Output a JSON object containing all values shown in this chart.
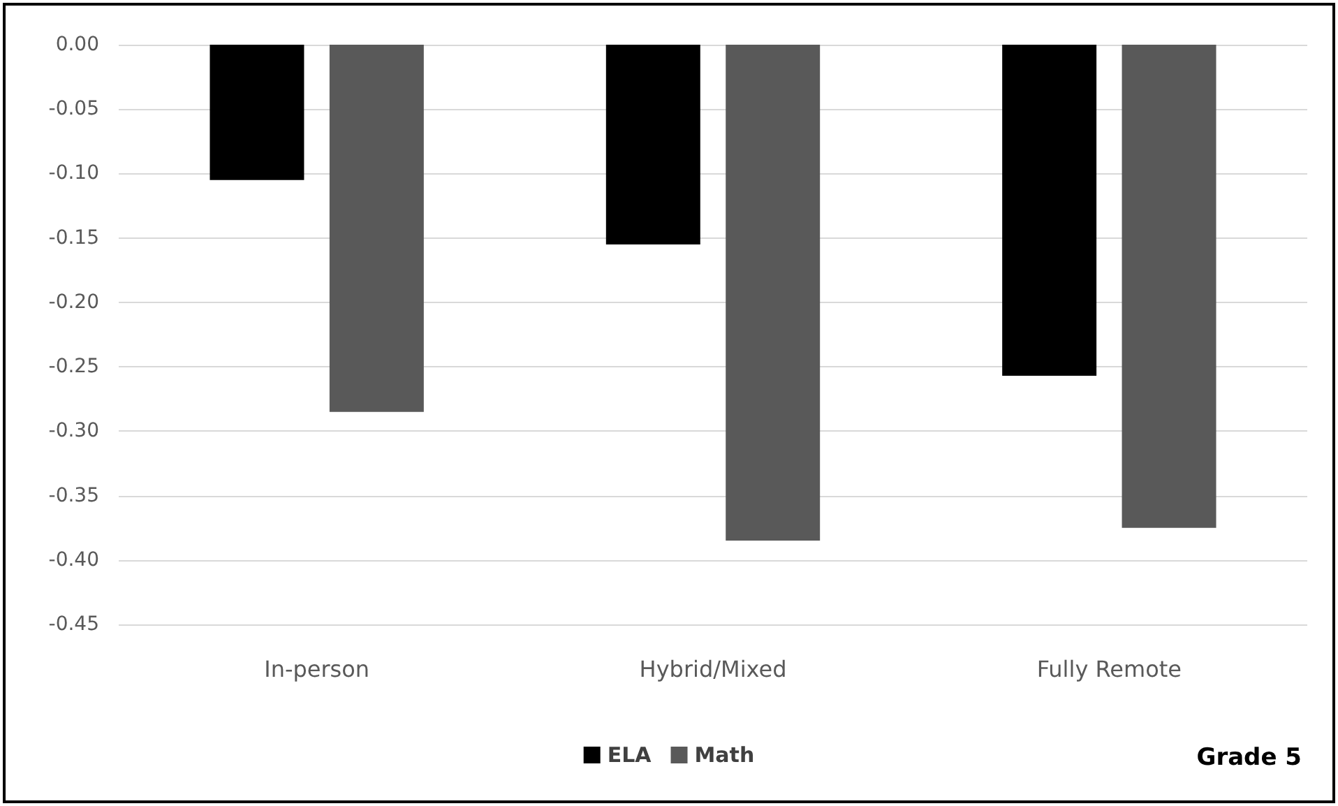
{
  "chart_data": {
    "type": "bar",
    "categories": [
      "In-person",
      "Hybrid/Mixed",
      "Fully Remote"
    ],
    "series": [
      {
        "name": "ELA",
        "color": "#000000",
        "values": [
          -0.105,
          -0.155,
          -0.257
        ]
      },
      {
        "name": "Math",
        "color": "#595959",
        "values": [
          -0.285,
          -0.385,
          -0.375
        ]
      }
    ],
    "ylim": [
      -0.45,
      0
    ],
    "yticks": [
      {
        "value": 0,
        "label": "0.00"
      },
      {
        "value": -0.05,
        "label": "-0.05"
      },
      {
        "value": -0.1,
        "label": "-0.10"
      },
      {
        "value": -0.15,
        "label": "-0.15"
      },
      {
        "value": -0.2,
        "label": "-0.20"
      },
      {
        "value": -0.25,
        "label": "-0.25"
      },
      {
        "value": -0.3,
        "label": "-0.30"
      },
      {
        "value": -0.35,
        "label": "-0.35"
      },
      {
        "value": -0.4,
        "label": "-0.40"
      },
      {
        "value": -0.45,
        "label": "-0.45"
      }
    ],
    "grid": "y",
    "legend": "bottom",
    "annotations": [
      "Grade 5"
    ]
  }
}
